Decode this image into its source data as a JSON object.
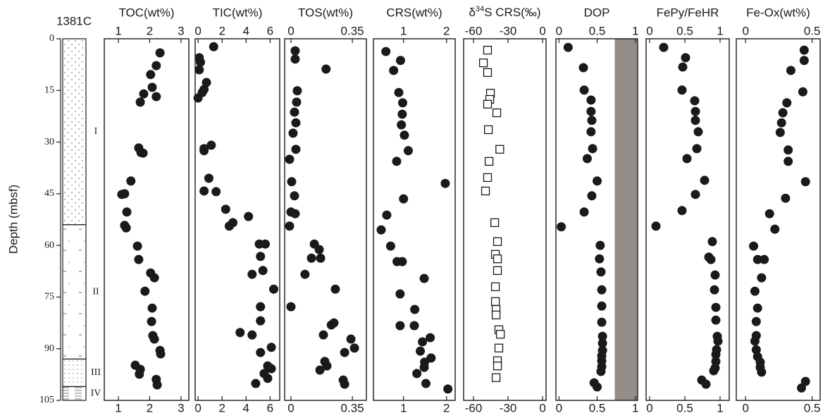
{
  "chart_data": [
    {
      "type": "lithology",
      "title": "1381C",
      "ylabel": "Depth (mbsf)",
      "ylim": [
        0,
        105
      ],
      "yticks": [
        0,
        15,
        30,
        45,
        60,
        75,
        90,
        105
      ],
      "units": [
        "I",
        "II",
        "III",
        "IV"
      ],
      "unit_top": [
        0,
        54,
        93,
        101
      ],
      "unit_bottom": [
        54,
        93,
        101,
        105
      ]
    },
    {
      "type": "scatter",
      "title": "TOC(wt%)",
      "marker": "circle",
      "color": "#1a1a1a",
      "xlim": [
        0.55,
        3.25
      ],
      "xticks": [
        1,
        2,
        3
      ],
      "ylim": [
        0,
        105
      ],
      "x": [
        2.33,
        2.21,
        2.03,
        2.08,
        1.81,
        2.21,
        1.7,
        1.65,
        1.72,
        1.79,
        1.4,
        1.2,
        1.11,
        1.27,
        1.2,
        1.25,
        1.61,
        1.65,
        2.03,
        2.15,
        1.85,
        2.08,
        2.06,
        2.1,
        2.15,
        2.33,
        2.35,
        1.54,
        1.7,
        1.67,
        2.21,
        2.24
      ],
      "y": [
        4.1,
        7.8,
        10.4,
        14.1,
        16.0,
        16.8,
        18.4,
        31.7,
        33.0,
        33.2,
        41.3,
        45.0,
        45.2,
        50.3,
        54.2,
        54.9,
        60.2,
        64.1,
        68.0,
        69.4,
        73.3,
        78.2,
        82.1,
        86.2,
        87.2,
        90.5,
        91.5,
        94.8,
        96.0,
        97.4,
        98.9,
        100.5
      ]
    },
    {
      "type": "scatter",
      "title": "TIC(wt%)",
      "marker": "circle",
      "color": "#1a1a1a",
      "xlim": [
        -0.24,
        6.8
      ],
      "xticks": [
        0,
        2,
        4,
        6
      ],
      "ylim": [
        0,
        105
      ],
      "x": [
        1.3,
        0.1,
        0.2,
        0.1,
        0.7,
        0.5,
        0.35,
        0,
        1.1,
        0.5,
        0.5,
        0.9,
        1.5,
        0.5,
        2.3,
        4.2,
        2.9,
        2.6,
        5.6,
        5.1,
        5.2,
        5.4,
        4.5,
        6.3,
        5.2,
        5.2,
        3.5,
        4.5,
        6.1,
        5.2,
        5.8,
        6.1,
        5.5,
        5.8,
        4.8
      ],
      "y": [
        2.3,
        5.5,
        6.8,
        9.0,
        12.7,
        14.7,
        15.6,
        17.2,
        30.9,
        31.9,
        32.5,
        40.5,
        44.4,
        44.2,
        49.5,
        51.6,
        53.4,
        54.4,
        59.6,
        59.6,
        63.2,
        67.3,
        68.4,
        72.7,
        77.8,
        81.9,
        85.3,
        86.0,
        89.6,
        91.1,
        95.0,
        95.8,
        97.2,
        98.6,
        100.1
      ]
    },
    {
      "type": "scatter",
      "title": "TOS(wt%)",
      "marker": "circle",
      "color": "#1a1a1a",
      "xlim": [
        -0.036,
        0.43
      ],
      "xticks": [
        0,
        0.35
      ],
      "ylim": [
        0,
        105
      ],
      "x": [
        0.024,
        0.024,
        0.2,
        0.036,
        0.032,
        0.02,
        0.028,
        0.012,
        0.028,
        -0.008,
        0.004,
        0.02,
        0,
        0.024,
        -0.008,
        0.133,
        0.161,
        0.117,
        0.169,
        0.08,
        0.253,
        0,
        0.245,
        0.23,
        0.185,
        0.342,
        0.362,
        0.306,
        0.193,
        0.205,
        0.165,
        0.298,
        0.306
      ],
      "y": [
        3.5,
        5.9,
        8.8,
        15.1,
        18.4,
        21.3,
        24.4,
        27.4,
        32.1,
        35.0,
        41.5,
        45.6,
        50.3,
        50.8,
        54.4,
        59.6,
        61.2,
        63.7,
        63.7,
        68.4,
        72.7,
        77.8,
        82.5,
        83.1,
        86.0,
        87.2,
        89.8,
        91.1,
        93.7,
        95.0,
        96.2,
        99.1,
        100.3
      ]
    },
    {
      "type": "scatter",
      "title": "CRS(wt%)",
      "marker": "circle",
      "color": "#1a1a1a",
      "xlim": [
        0.3,
        2.2
      ],
      "xticks": [
        1,
        2
      ],
      "ylim": [
        0,
        105
      ],
      "x": [
        0.59,
        0.93,
        0.77,
        0.89,
        0.98,
        0.97,
        0.95,
        1.02,
        1.11,
        0.84,
        1.97,
        1.0,
        0.61,
        0.48,
        0.7,
        0.85,
        0.97,
        1.48,
        0.92,
        1.26,
        0.92,
        1.25,
        1.62,
        1.44,
        1.39,
        1.64,
        1.49,
        1.48,
        1.31,
        1.52,
        2.03
      ],
      "y": [
        3.7,
        6.3,
        9.2,
        15.6,
        18.6,
        21.9,
        25.0,
        28.0,
        32.5,
        35.6,
        42.0,
        46.5,
        51.2,
        55.5,
        60.2,
        64.7,
        64.7,
        69.6,
        74.1,
        78.6,
        83.3,
        83.3,
        86.8,
        88.0,
        90.7,
        92.7,
        93.9,
        95.4,
        97.2,
        100.1,
        101.7
      ]
    },
    {
      "type": "scatter",
      "title_parts": [
        "δ",
        "34",
        "S CRS(‰)"
      ],
      "marker": "square-open",
      "color": "#1a1a1a",
      "xlim": [
        -68.6,
        3
      ],
      "xticks": [
        -60,
        -30,
        0
      ],
      "ylim": [
        0,
        105
      ],
      "x": [
        -47.8,
        -51.4,
        -47.8,
        -45.3,
        -45.9,
        -47.8,
        -39.8,
        -47.1,
        -37.2,
        -46.5,
        -47.8,
        -49.6,
        -41.6,
        -39.2,
        -41.0,
        -39.2,
        -39.2,
        -41.0,
        -41.0,
        -40.4,
        -40.4,
        -38.0,
        -36.7,
        -38.0,
        -39.2,
        -39.2,
        -40.4
      ],
      "y": [
        3.3,
        7.0,
        9.8,
        15.8,
        17.6,
        19.0,
        21.5,
        26.4,
        32.1,
        35.6,
        40.3,
        44.2,
        53.4,
        58.9,
        62.6,
        63.9,
        67.3,
        72.0,
        76.3,
        78.6,
        80.2,
        84.5,
        85.8,
        89.8,
        93.5,
        95.0,
        98.4
      ]
    },
    {
      "type": "scatter",
      "title": "DOP",
      "marker": "circle",
      "color": "#1a1a1a",
      "xlim": [
        -0.04,
        1.03
      ],
      "xticks": [
        0,
        0.5,
        1
      ],
      "ylim": [
        0,
        105
      ],
      "shade": [
        0.73,
        1.03
      ],
      "shade_color": "#948e89",
      "x": [
        0.12,
        0.32,
        0.33,
        0.42,
        0.42,
        0.43,
        0.42,
        0.44,
        0.37,
        0.5,
        0.43,
        0.33,
        0.03,
        0.54,
        0.53,
        0.55,
        0.56,
        0.56,
        0.56,
        0.57,
        0.57,
        0.57,
        0.56,
        0.56,
        0.56,
        0.55,
        0.46,
        0.5
      ],
      "y": [
        2.5,
        8.4,
        14.9,
        17.8,
        21.1,
        23.7,
        27.0,
        31.9,
        34.8,
        41.3,
        45.6,
        50.3,
        54.6,
        60.0,
        63.9,
        67.7,
        72.9,
        77.6,
        82.3,
        86.4,
        88.4,
        90.5,
        92.1,
        93.5,
        95.2,
        96.6,
        99.9,
        101.1
      ]
    },
    {
      "type": "scatter",
      "title": "FePy/FeHR",
      "marker": "circle",
      "color": "#1a1a1a",
      "xlim": [
        -0.05,
        1.13
      ],
      "xticks": [
        0,
        0.5,
        1
      ],
      "ylim": [
        0,
        105
      ],
      "x": [
        0.2,
        0.51,
        0.47,
        0.46,
        0.64,
        0.65,
        0.65,
        0.69,
        0.67,
        0.53,
        0.78,
        0.65,
        0.46,
        0.09,
        0.89,
        0.84,
        0.87,
        0.93,
        0.92,
        0.94,
        0.94,
        0.96,
        0.97,
        0.95,
        0.94,
        0.94,
        0.93,
        0.91,
        0.74,
        0.8
      ],
      "y": [
        2.5,
        5.5,
        8.2,
        14.9,
        18.0,
        21.1,
        23.7,
        27.0,
        31.9,
        34.8,
        41.1,
        45.2,
        49.9,
        54.4,
        58.9,
        63.4,
        64.1,
        68.6,
        72.9,
        78.0,
        81.7,
        86.4,
        87.8,
        90.3,
        91.7,
        93.7,
        95.6,
        96.4,
        99.1,
        100.3
      ]
    },
    {
      "type": "scatter",
      "title": "Fe-Ox(wt%)",
      "marker": "circle",
      "color": "#1a1a1a",
      "xlim": [
        -0.07,
        0.56
      ],
      "xticks": [
        0,
        0.5
      ],
      "ylim": [
        0,
        105
      ],
      "x": [
        0.44,
        0.44,
        0.34,
        0.43,
        0.31,
        0.28,
        0.27,
        0.26,
        0.32,
        0.32,
        0.45,
        0.3,
        0.18,
        0.22,
        0.06,
        0.09,
        0.14,
        0.12,
        0.07,
        0.09,
        0.08,
        0.08,
        0.07,
        0.08,
        0.09,
        0.11,
        0.11,
        0.12,
        0.45,
        0.42
      ],
      "y": [
        3.3,
        6.3,
        9.2,
        15.4,
        18.6,
        21.5,
        24.4,
        27.2,
        32.3,
        35.6,
        41.5,
        46.3,
        50.8,
        55.3,
        60.2,
        64.1,
        64.1,
        69.4,
        73.3,
        78.2,
        82.1,
        86.2,
        87.8,
        90.3,
        92.3,
        93.9,
        95.4,
        96.8,
        99.5,
        101.4
      ]
    }
  ]
}
